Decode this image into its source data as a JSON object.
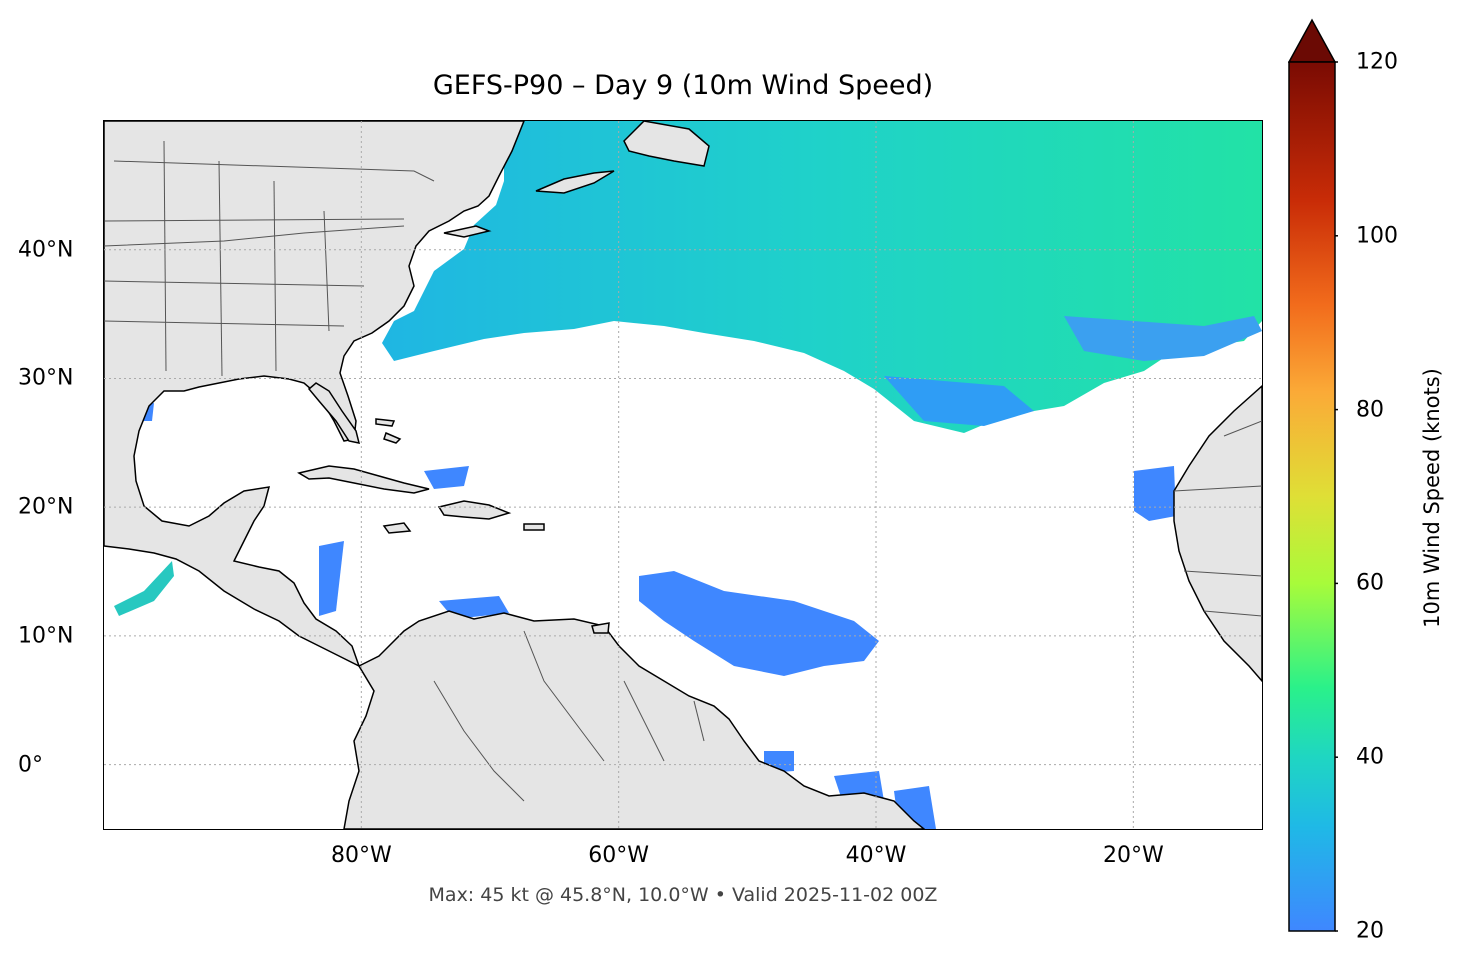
{
  "title": "GEFS-P90 – Day 9 (10m Wind Speed)",
  "subtitle": "Max: 45 kt @ 45.8°N, 10.0°W • Valid 2025-11-02 00Z",
  "map": {
    "extent": {
      "lon": [
        -100,
        -10
      ],
      "lat": [
        -5,
        50
      ]
    },
    "lon_ticks": [
      {
        "value": -80,
        "label": "80°W"
      },
      {
        "value": -60,
        "label": "60°W"
      },
      {
        "value": -40,
        "label": "40°W"
      },
      {
        "value": -20,
        "label": "20°W"
      }
    ],
    "lat_ticks": [
      {
        "value": 40,
        "label": "40°N"
      },
      {
        "value": 30,
        "label": "30°N"
      },
      {
        "value": 20,
        "label": "20°N"
      },
      {
        "value": 10,
        "label": "10°N"
      },
      {
        "value": 0,
        "label": "0°"
      }
    ],
    "gridlines": true,
    "land_color": "#e5e5e5",
    "ocean_color": "#ffffff"
  },
  "colorbar": {
    "label": "10m Wind Speed (knots)",
    "min": 20,
    "max": 120,
    "extend": "max",
    "ticks": [
      {
        "value": 120,
        "label": "120"
      },
      {
        "value": 100,
        "label": "100"
      },
      {
        "value": 80,
        "label": "80"
      },
      {
        "value": 60,
        "label": "60"
      },
      {
        "value": 40,
        "label": "40"
      },
      {
        "value": 20,
        "label": "20"
      }
    ],
    "colormap": [
      "#3f87ff",
      "#1fc8d8",
      "#27f08a",
      "#a8fb3a",
      "#e3dc38",
      "#fbaa37",
      "#f26c1c",
      "#c92c07",
      "#6b0a04"
    ]
  },
  "max_point": {
    "value_kt": 45,
    "lat": 45.8,
    "lon": -10.0,
    "valid": "2025-11-02 00Z"
  }
}
